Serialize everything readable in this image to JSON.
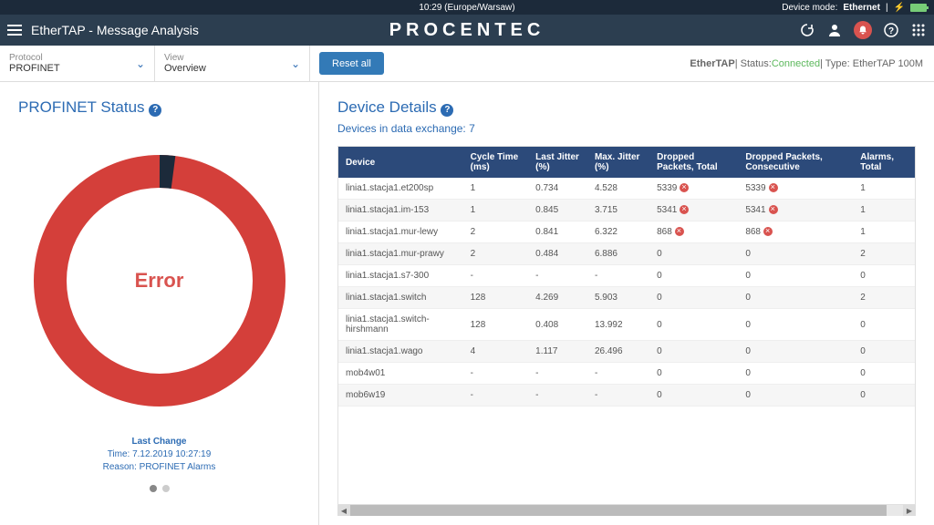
{
  "topbar": {
    "time": "10:29 (Europe/Warsaw)",
    "device_mode_label": "Device mode:",
    "device_mode_value": "Ethernet"
  },
  "header": {
    "title": "EtherTAP - Message Analysis",
    "brand": "PROCENTEC"
  },
  "subbar": {
    "protocol_label": "Protocol",
    "protocol_value": "PROFINET",
    "view_label": "View",
    "view_value": "Overview",
    "reset_label": "Reset all",
    "product": "EtherTAP",
    "status_label": " | Status: ",
    "status_value": "Connected",
    "type_label": " | Type: EtherTAP 100M"
  },
  "left": {
    "title": "PROFINET Status",
    "donut_status": "Error",
    "donut_color": "#d43f3a",
    "donut_notch_color": "#1c2a3a",
    "last_change_title": "Last Change",
    "last_change_time": "Time: 7.12.2019 10:27:19",
    "last_change_reason": "Reason: PROFINET Alarms"
  },
  "right": {
    "title": "Device Details",
    "subtitle": "Devices in data exchange: 7",
    "columns": [
      "Device",
      "Cycle Time (ms)",
      "Last Jitter (%)",
      "Max. Jitter (%)",
      "Dropped Packets, Total",
      "Dropped Packets, Consecutive",
      "Alarms, Total"
    ],
    "rows": [
      {
        "device": "linia1.stacja1.et200sp",
        "cycle": "1",
        "last_jitter": "0.734",
        "max_jitter": "4.528",
        "dropped_total": "5339",
        "dropped_total_err": true,
        "dropped_cons": "5339",
        "dropped_cons_err": true,
        "alarms": "1"
      },
      {
        "device": "linia1.stacja1.im-153",
        "cycle": "1",
        "last_jitter": "0.845",
        "max_jitter": "3.715",
        "dropped_total": "5341",
        "dropped_total_err": true,
        "dropped_cons": "5341",
        "dropped_cons_err": true,
        "alarms": "1"
      },
      {
        "device": "linia1.stacja1.mur-lewy",
        "cycle": "2",
        "last_jitter": "0.841",
        "max_jitter": "6.322",
        "dropped_total": "868",
        "dropped_total_err": true,
        "dropped_cons": "868",
        "dropped_cons_err": true,
        "alarms": "1"
      },
      {
        "device": "linia1.stacja1.mur-prawy",
        "cycle": "2",
        "last_jitter": "0.484",
        "max_jitter": "6.886",
        "dropped_total": "0",
        "dropped_total_err": false,
        "dropped_cons": "0",
        "dropped_cons_err": false,
        "alarms": "2"
      },
      {
        "device": "linia1.stacja1.s7-300",
        "cycle": "-",
        "last_jitter": "-",
        "max_jitter": "-",
        "dropped_total": "0",
        "dropped_total_err": false,
        "dropped_cons": "0",
        "dropped_cons_err": false,
        "alarms": "0"
      },
      {
        "device": "linia1.stacja1.switch",
        "cycle": "128",
        "last_jitter": "4.269",
        "max_jitter": "5.903",
        "dropped_total": "0",
        "dropped_total_err": false,
        "dropped_cons": "0",
        "dropped_cons_err": false,
        "alarms": "2"
      },
      {
        "device": "linia1.stacja1.switch-hirshmann",
        "cycle": "128",
        "last_jitter": "0.408",
        "max_jitter": "13.992",
        "dropped_total": "0",
        "dropped_total_err": false,
        "dropped_cons": "0",
        "dropped_cons_err": false,
        "alarms": "0"
      },
      {
        "device": "linia1.stacja1.wago",
        "cycle": "4",
        "last_jitter": "1.117",
        "max_jitter": "26.496",
        "dropped_total": "0",
        "dropped_total_err": false,
        "dropped_cons": "0",
        "dropped_cons_err": false,
        "alarms": "0"
      },
      {
        "device": "mob4w01",
        "cycle": "-",
        "last_jitter": "-",
        "max_jitter": "-",
        "dropped_total": "0",
        "dropped_total_err": false,
        "dropped_cons": "0",
        "dropped_cons_err": false,
        "alarms": "0"
      },
      {
        "device": "mob6w19",
        "cycle": "-",
        "last_jitter": "-",
        "max_jitter": "-",
        "dropped_total": "0",
        "dropped_total_err": false,
        "dropped_cons": "0",
        "dropped_cons_err": false,
        "alarms": "0"
      }
    ]
  }
}
